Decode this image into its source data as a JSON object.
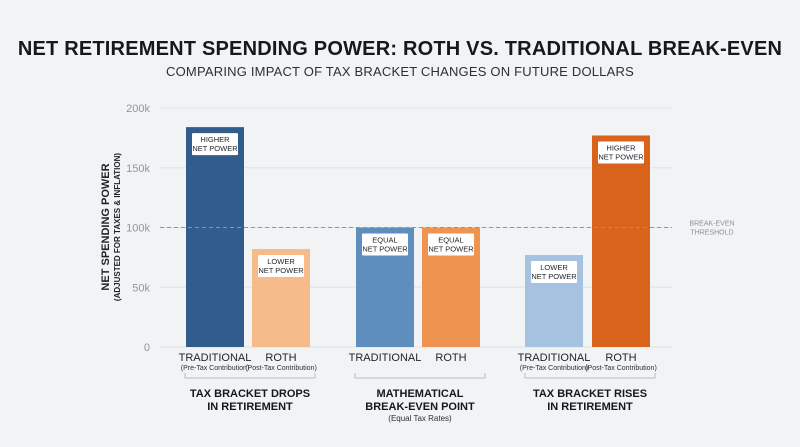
{
  "header": {
    "title": "NET RETIREMENT SPENDING POWER: ROTH VS. TRADITIONAL BREAK-EVEN",
    "subtitle": "COMPARING IMPACT OF TAX BRACKET CHANGES ON FUTURE DOLLARS"
  },
  "chart_data": {
    "type": "bar",
    "ylabel": "NET SPENDING POWER",
    "ylabel_sub": "(ADJUSTED FOR TAXES & INFLATION)",
    "ylim": [
      0,
      200000
    ],
    "yticks": [
      {
        "value": 0,
        "label": "0"
      },
      {
        "value": 50000,
        "label": "50k"
      },
      {
        "value": 100000,
        "label": "100k"
      },
      {
        "value": 150000,
        "label": "150k"
      },
      {
        "value": 200000,
        "label": "200k"
      }
    ],
    "grid": true,
    "reference_line": {
      "value": 100000,
      "label_line1": "BREAK-EVEN",
      "label_line2": "THRESHOLD"
    },
    "groups": [
      {
        "name_line1": "TAX BRACKET DROPS",
        "name_line2": "IN RETIREMENT",
        "note": "",
        "bars": [
          {
            "category": "TRADITIONAL",
            "sub": "(Pre-Tax Contribution)",
            "value": 184000,
            "label_line1": "HIGHER",
            "label_line2": "NET POWER",
            "color": "#325c8c"
          },
          {
            "category": "ROTH",
            "sub": "(Post-Tax Contribution)",
            "value": 82000,
            "label_line1": "LOWER",
            "label_line2": "NET POWER",
            "color": "#f5bb8b"
          }
        ]
      },
      {
        "name_line1": "MATHEMATICAL",
        "name_line2": "BREAK-EVEN POINT",
        "note": "(Equal Tax Rates)",
        "bars": [
          {
            "category": "TRADITIONAL",
            "sub": "",
            "value": 100000,
            "label_line1": "EQUAL",
            "label_line2": "NET POWER",
            "color": "#5e8ebd"
          },
          {
            "category": "ROTH",
            "sub": "",
            "value": 100000,
            "label_line1": "EQUAL",
            "label_line2": "NET POWER",
            "color": "#ef9350"
          }
        ]
      },
      {
        "name_line1": "TAX BRACKET RISES",
        "name_line2": "IN RETIREMENT",
        "note": "",
        "bars": [
          {
            "category": "TRADITIONAL",
            "sub": "(Pre-Tax Contribution)",
            "value": 77000,
            "label_line1": "LOWER",
            "label_line2": "NET POWER",
            "color": "#a5c2e0"
          },
          {
            "category": "ROTH",
            "sub": "(Post-Tax Contribution)",
            "value": 177000,
            "label_line1": "HIGHER",
            "label_line2": "NET POWER",
            "color": "#d8641c"
          }
        ]
      }
    ]
  }
}
